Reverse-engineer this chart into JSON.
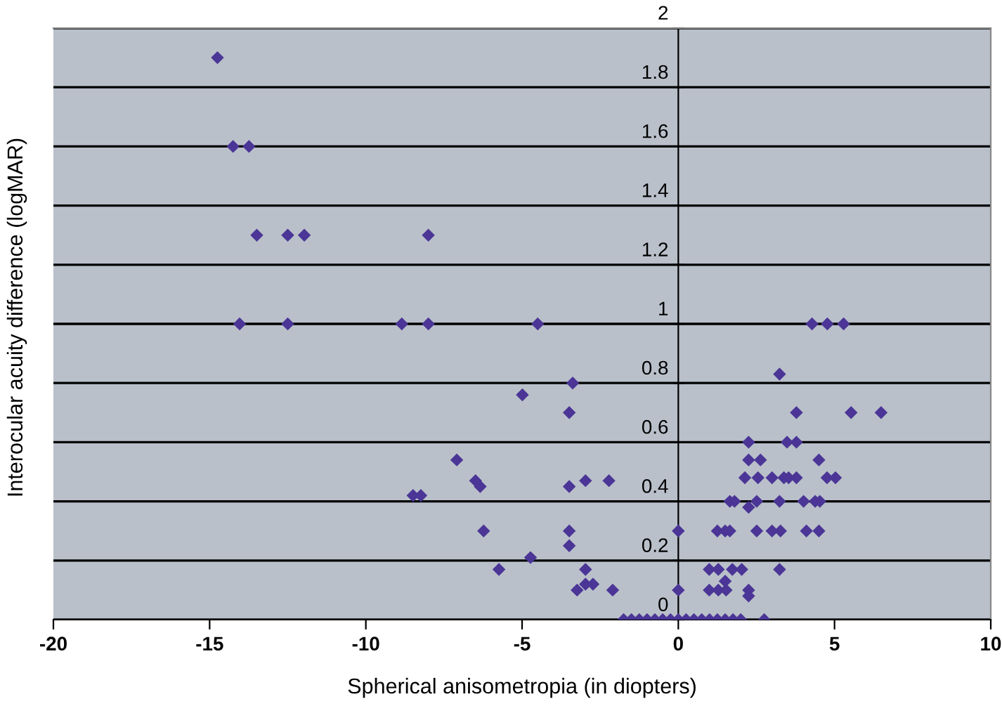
{
  "chart_data": {
    "type": "scatter",
    "xlabel": "Spherical anisometropia (in diopters)",
    "ylabel": "Interocular acuity difference (logMAR)",
    "series": [
      {
        "color": "#4b3596",
        "x": [
          -14.75,
          -14.25,
          -13.74,
          -13.49,
          -12.5,
          -11.97,
          -8.0,
          -14.04,
          -12.5,
          -8.85,
          -8.0,
          -4.5,
          -4.99,
          -3.38,
          -3.49,
          -7.09,
          -6.49,
          -6.34,
          -8.49,
          -8.24,
          -3.49,
          -2.97,
          -2.22,
          -6.23,
          -3.49,
          -3.49,
          -4.73,
          -5.74,
          -2.97,
          -3.24,
          -2.97,
          -2.73,
          -2.1,
          0,
          0,
          4.28,
          4.77,
          5.29,
          3.24,
          3.78,
          5.53,
          6.49,
          2.25,
          3.48,
          3.78,
          2.25,
          2.63,
          4.5,
          2.13,
          2.55,
          3.0,
          3.38,
          3.53,
          3.78,
          4.76,
          5.03,
          1.65,
          1.8,
          2.51,
          3.24,
          4.01,
          4.38,
          4.53,
          2.25,
          1.25,
          1.5,
          1.65,
          2.51,
          3.0,
          3.27,
          4.1,
          4.5,
          0.99,
          1.28,
          1.73,
          2.03,
          3.24,
          1.5,
          0.99,
          1.28,
          1.53,
          2.25,
          2.25,
          2.75,
          -1.75,
          -1.5,
          -1.25,
          -1.0,
          -0.75,
          -0.5,
          -0.25,
          0,
          0.25,
          0.5,
          0.75,
          1.0,
          1.25,
          1.5,
          1.75,
          2.0
        ],
        "values": [
          1.9,
          1.6,
          1.6,
          1.3,
          1.3,
          1.3,
          1.3,
          1.0,
          1.0,
          1.0,
          1.0,
          1.0,
          0.76,
          0.8,
          0.7,
          0.54,
          0.47,
          0.45,
          0.42,
          0.42,
          0.45,
          0.47,
          0.47,
          0.3,
          0.3,
          0.25,
          0.21,
          0.17,
          0.17,
          0.1,
          0.12,
          0.12,
          0.1,
          0.3,
          0.1,
          1.0,
          1.0,
          1.0,
          0.83,
          0.7,
          0.7,
          0.7,
          0.6,
          0.6,
          0.6,
          0.54,
          0.54,
          0.54,
          0.48,
          0.48,
          0.48,
          0.48,
          0.48,
          0.48,
          0.48,
          0.48,
          0.4,
          0.4,
          0.4,
          0.4,
          0.4,
          0.4,
          0.4,
          0.38,
          0.3,
          0.3,
          0.3,
          0.3,
          0.3,
          0.3,
          0.3,
          0.3,
          0.17,
          0.17,
          0.17,
          0.17,
          0.17,
          0.13,
          0.1,
          0.1,
          0.1,
          0.1,
          0.08,
          0,
          0,
          0,
          0,
          0,
          0,
          0,
          0,
          0,
          0,
          0,
          0,
          0,
          0,
          0,
          0,
          0
        ]
      }
    ],
    "xlim": [
      -20,
      10
    ],
    "xticks": [
      -20,
      -15,
      -10,
      -5,
      0,
      5,
      10
    ],
    "ylim": [
      0,
      2
    ],
    "yticks": [
      0,
      0.2,
      0.4,
      0.6,
      0.8,
      1,
      1.2,
      1.4,
      1.6,
      1.8,
      2
    ],
    "grid": "y",
    "marker": "diamond"
  }
}
